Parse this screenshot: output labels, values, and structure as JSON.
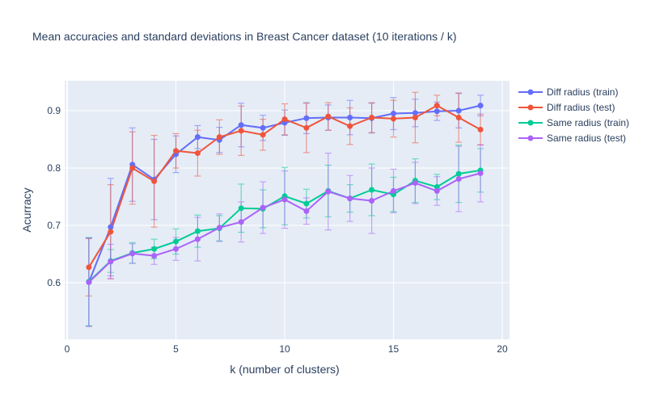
{
  "chart_data": {
    "type": "line",
    "title": "Mean accuracies and standard deviations in Breast Cancer dataset (10 iterations / k)",
    "xlabel": "k (number of clusters)",
    "ylabel": "Acurracy",
    "xlim": [
      0,
      20
    ],
    "ylim": [
      0.5,
      0.95
    ],
    "x_ticks": [
      0,
      5,
      10,
      15,
      20
    ],
    "y_ticks": [
      0.6,
      0.7,
      0.8,
      0.9
    ],
    "grid": true,
    "legend_position": "right",
    "plot_background": "#e5ecf6",
    "x": [
      1,
      2,
      3,
      4,
      5,
      6,
      7,
      8,
      9,
      10,
      11,
      12,
      13,
      14,
      15,
      16,
      17,
      18,
      19
    ],
    "series": [
      {
        "name": "Diff radius (train)",
        "color": "#636efa",
        "values": [
          0.601,
          0.697,
          0.806,
          0.78,
          0.824,
          0.854,
          0.849,
          0.875,
          0.87,
          0.879,
          0.887,
          0.888,
          0.888,
          0.887,
          0.895,
          0.896,
          0.899,
          0.9,
          0.909
        ],
        "std": [
          0.077,
          0.085,
          0.064,
          0.07,
          0.032,
          0.02,
          0.022,
          0.038,
          0.022,
          0.022,
          0.027,
          0.022,
          0.03,
          0.026,
          0.028,
          0.024,
          0.016,
          0.03,
          0.018
        ]
      },
      {
        "name": "Diff radius (test)",
        "color": "#ef553b",
        "values": [
          0.627,
          0.689,
          0.8,
          0.777,
          0.83,
          0.826,
          0.854,
          0.865,
          0.858,
          0.885,
          0.87,
          0.89,
          0.873,
          0.888,
          0.886,
          0.888,
          0.909,
          0.888,
          0.867
        ],
        "std": [
          0.05,
          0.082,
          0.063,
          0.08,
          0.03,
          0.04,
          0.03,
          0.043,
          0.027,
          0.027,
          0.043,
          0.024,
          0.032,
          0.026,
          0.032,
          0.044,
          0.018,
          0.043,
          0.027
        ]
      },
      {
        "name": "Same radius (train)",
        "color": "#00cc96",
        "values": [
          0.602,
          0.638,
          0.652,
          0.659,
          0.672,
          0.69,
          0.695,
          0.73,
          0.729,
          0.751,
          0.738,
          0.76,
          0.747,
          0.762,
          0.754,
          0.778,
          0.767,
          0.79,
          0.796
        ],
        "std": [
          0.077,
          0.02,
          0.018,
          0.017,
          0.022,
          0.028,
          0.022,
          0.042,
          0.033,
          0.05,
          0.025,
          0.045,
          0.024,
          0.045,
          0.03,
          0.038,
          0.022,
          0.05,
          0.038
        ]
      },
      {
        "name": "Same radius (test)",
        "color": "#ab63fa",
        "values": [
          0.601,
          0.637,
          0.651,
          0.647,
          0.659,
          0.676,
          0.696,
          0.706,
          0.731,
          0.745,
          0.725,
          0.759,
          0.747,
          0.743,
          0.76,
          0.774,
          0.76,
          0.781,
          0.791
        ],
        "std": [
          0.077,
          0.03,
          0.017,
          0.015,
          0.02,
          0.038,
          0.024,
          0.035,
          0.045,
          0.05,
          0.023,
          0.067,
          0.04,
          0.057,
          0.038,
          0.036,
          0.025,
          0.057,
          0.05
        ]
      }
    ]
  }
}
